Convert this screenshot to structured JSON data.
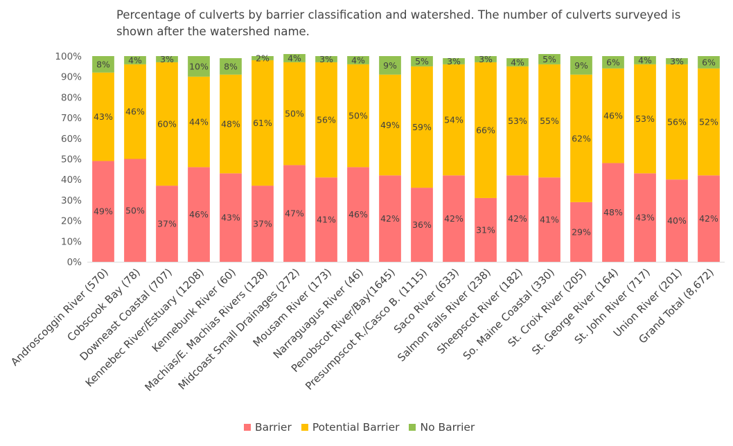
{
  "chart_data": {
    "type": "bar",
    "stacked": true,
    "percent_stacked": true,
    "title": "Percentage of culverts by barrier classification and watershed.  The number of culverts surveyed is shown after the watershed name.",
    "xlabel": "",
    "ylabel": "",
    "ylim": [
      0,
      100
    ],
    "yticks": [
      "0%",
      "10%",
      "20%",
      "30%",
      "40%",
      "50%",
      "60%",
      "70%",
      "80%",
      "90%",
      "100%"
    ],
    "grid": false,
    "legend_position": "bottom",
    "categories": [
      "Androscoggin River (570)",
      "Cobscook Bay (78)",
      "Downeast Coastal (707)",
      "Kennebec River/Estuary (1208)",
      "Kennebunk River (60)",
      "Machias/E. Machias Rivers (128)",
      "Midcoast Small Drainages (272)",
      "Mousam River (173)",
      "Narraguagus River (46)",
      "Penobscot River/Bay(1645)",
      "Presumpscot R./Casco B. (1115)",
      "Saco River (633)",
      "Salmon Falls River (238)",
      "Sheepscot River (182)",
      "So. Maine Coastal (330)",
      "St. Croix River (205)",
      "St. George River (164)",
      "St. John River (717)",
      "Union River (201)",
      "Grand Total (8,672)"
    ],
    "series": [
      {
        "name": "Barrier",
        "color": "#FF7575",
        "values": [
          49,
          50,
          37,
          46,
          43,
          37,
          47,
          41,
          46,
          42,
          36,
          42,
          31,
          42,
          41,
          29,
          48,
          43,
          40,
          42
        ],
        "labels": [
          "49%",
          "50%",
          "37%",
          "46%",
          "43%",
          "37%",
          "47%",
          "41%",
          "46%",
          "42%",
          "36%",
          "42%",
          "31%",
          "42%",
          "41%",
          "29%",
          "48%",
          "43%",
          "40%",
          "42%"
        ]
      },
      {
        "name": "Potential Barrier",
        "color": "#FFC000",
        "values": [
          43,
          46,
          60,
          44,
          48,
          61,
          50,
          56,
          50,
          49,
          59,
          54,
          66,
          53,
          55,
          62,
          46,
          53,
          56,
          52
        ],
        "labels": [
          "43%",
          "46%",
          "60%",
          "44%",
          "48%",
          "61%",
          "50%",
          "56%",
          "50%",
          "49%",
          "59%",
          "54%",
          "66%",
          "53%",
          "55%",
          "62%",
          "46%",
          "53%",
          "56%",
          "52%"
        ]
      },
      {
        "name": "No Barrier",
        "color": "#92C050",
        "values": [
          8,
          4,
          3,
          10,
          8,
          2,
          4,
          3,
          4,
          9,
          5,
          3,
          3,
          4,
          5,
          9,
          6,
          4,
          3,
          6
        ],
        "labels": [
          "8%",
          "4%",
          "3%",
          "10%",
          "8%",
          "2%",
          "4%",
          "3%",
          "4%",
          "9%",
          "5%",
          "3%",
          "3%",
          "4%",
          "5%",
          "9%",
          "6%",
          "4%",
          "3%",
          "6%"
        ]
      }
    ]
  }
}
